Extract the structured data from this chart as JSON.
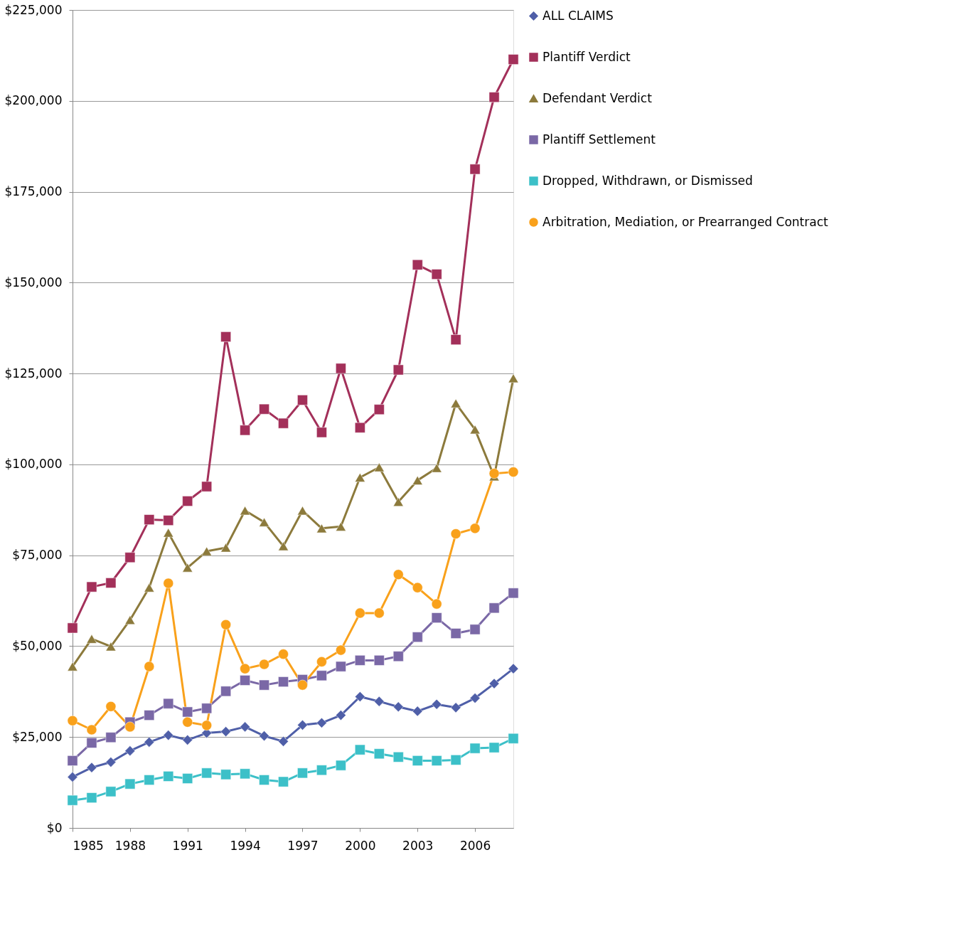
{
  "chart_data": {
    "type": "line",
    "x": [
      1985,
      1986,
      1987,
      1988,
      1989,
      1990,
      1991,
      1992,
      1993,
      1994,
      1995,
      1996,
      1997,
      1998,
      1999,
      2000,
      2001,
      2002,
      2003,
      2004,
      2005,
      2006,
      2007,
      2008
    ],
    "xlim": [
      1985,
      2008
    ],
    "xticks": [
      1985,
      1988,
      1991,
      1994,
      1997,
      2000,
      2003,
      2006
    ],
    "ylim": [
      0,
      225000
    ],
    "yticks": [
      {
        "value": 0,
        "label": "$0"
      },
      {
        "value": 25000,
        "label": "$25,000"
      },
      {
        "value": 50000,
        "label": "$50,000"
      },
      {
        "value": 75000,
        "label": "$75,000"
      },
      {
        "value": 100000,
        "label": "$100,000"
      },
      {
        "value": 125000,
        "label": "$125,000"
      },
      {
        "value": 150000,
        "label": "$150,000"
      },
      {
        "value": 175000,
        "label": "$175,000"
      },
      {
        "value": 200000,
        "label": "$200,000"
      },
      {
        "value": 225000,
        "label": "$225,000"
      }
    ],
    "grid": "y",
    "legend": "right",
    "line_style": "solid",
    "series": [
      {
        "name": "ALL CLAIMS",
        "color": "#4f5fa8",
        "marker": "diamond",
        "values": [
          14000,
          16600,
          18100,
          21200,
          23600,
          25500,
          24200,
          26100,
          26500,
          27800,
          25300,
          23800,
          28300,
          28900,
          31000,
          36100,
          34800,
          33300,
          32100,
          34000,
          33100,
          35700,
          39700,
          43800
        ]
      },
      {
        "name": "Plantiff Verdict",
        "color": "#a3305a",
        "marker": "square",
        "values": [
          55000,
          66300,
          67400,
          74400,
          84800,
          84600,
          89900,
          93900,
          135100,
          109400,
          115200,
          111300,
          117700,
          108800,
          126400,
          110100,
          115100,
          126000,
          154900,
          152300,
          134300,
          181200,
          201000,
          211400
        ]
      },
      {
        "name": "Defendant Verdict",
        "color": "#8c7a3c",
        "marker": "triangle",
        "values": [
          44400,
          52000,
          49900,
          57200,
          66100,
          81200,
          71600,
          76100,
          77100,
          87300,
          84100,
          77500,
          87300,
          82400,
          82900,
          96400,
          99200,
          89700,
          95600,
          99000,
          116800,
          109600,
          96700,
          123700
        ]
      },
      {
        "name": "Plantiff Settlement",
        "color": "#7a68a6",
        "marker": "square",
        "values": [
          18500,
          23400,
          24900,
          29100,
          31000,
          34200,
          31900,
          32900,
          37600,
          40600,
          39300,
          40200,
          40800,
          41900,
          44400,
          46100,
          46100,
          47200,
          52500,
          57800,
          53500,
          54600,
          60500,
          64600
        ]
      },
      {
        "name": "Dropped, Withdrawn, or Dismissed",
        "color": "#3cc0c8",
        "marker": "square",
        "values": [
          7600,
          8300,
          10000,
          12100,
          13200,
          14200,
          13600,
          15100,
          14700,
          14900,
          13200,
          12700,
          15100,
          15900,
          17200,
          21500,
          20400,
          19500,
          18500,
          18500,
          18700,
          21900,
          22100,
          24600
        ]
      },
      {
        "name": "Arbitration, Mediation, or Prearranged Contract",
        "color": "#f9a11b",
        "marker": "circle",
        "values": [
          29500,
          27000,
          33400,
          27800,
          44400,
          67300,
          29100,
          28200,
          55900,
          43800,
          45000,
          47800,
          39300,
          45700,
          48900,
          59100,
          59100,
          69700,
          66100,
          61600,
          80900,
          82400,
          97500,
          97900
        ]
      }
    ]
  }
}
